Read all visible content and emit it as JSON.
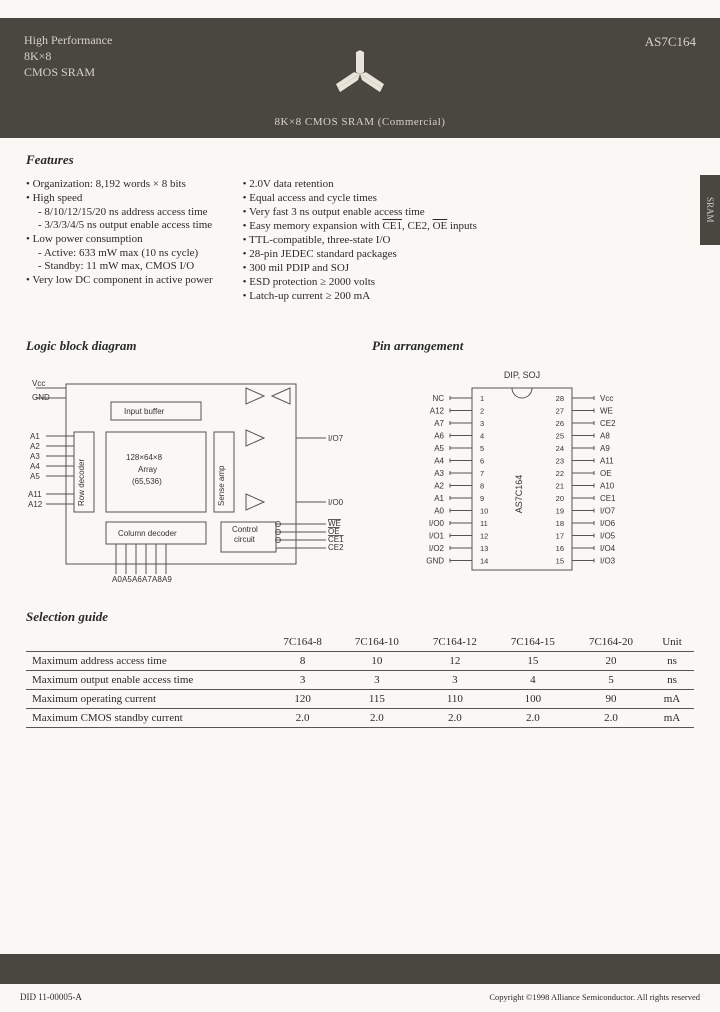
{
  "header": {
    "line1": "High Performance",
    "line2": "8K×8",
    "line3": "CMOS SRAM",
    "right": "AS7C164",
    "sub": "8K×8 CMOS SRAM (Commercial)"
  },
  "sideTab": "SRAM",
  "sections": {
    "features": "Features",
    "logic": "Logic block diagram",
    "pin": "Pin arrangement",
    "selection": "Selection guide"
  },
  "featuresLeft": [
    {
      "t": "b",
      "text": "Organization: 8,192 words × 8 bits"
    },
    {
      "t": "b",
      "text": "High speed"
    },
    {
      "t": "s",
      "text": "8/10/12/15/20 ns address access time"
    },
    {
      "t": "s",
      "text": "3/3/3/4/5 ns output enable access time"
    },
    {
      "t": "b",
      "text": "Low power consumption"
    },
    {
      "t": "s",
      "text": "Active: 633 mW max (10 ns cycle)"
    },
    {
      "t": "s",
      "text": "Standby: 11 mW max, CMOS I/O"
    },
    {
      "t": "b",
      "text": "Very low DC component in active power"
    }
  ],
  "featuresRight": [
    {
      "t": "b",
      "text": "2.0V data retention"
    },
    {
      "t": "b",
      "text": "Equal access and cycle times"
    },
    {
      "t": "b",
      "text": "Very fast 3 ns output enable access time"
    },
    {
      "t": "b",
      "text": "Easy memory expansion with CE1, CE2, OE inputs"
    },
    {
      "t": "b",
      "text": "TTL-compatible, three-state I/O"
    },
    {
      "t": "b",
      "text": "28-pin JEDEC standard packages"
    },
    {
      "t": "b",
      "text": "300 mil PDIP and SOJ"
    },
    {
      "t": "b",
      "text": "ESD protection ≥ 2000 volts"
    },
    {
      "t": "b",
      "text": "Latch-up current ≥ 200 mA"
    }
  ],
  "logic": {
    "vcc": "Vcc",
    "gnd": "GND",
    "inputBuffer": "Input buffer",
    "array1": "128×64×8",
    "array2": "Array",
    "array3": "(65,536)",
    "rowDecoder": "Row decoder",
    "colDecoder": "Column decoder",
    "senseAmp": "Sense amp",
    "control": "Control",
    "circuit": "circuit",
    "io7": "I/O7",
    "io0": "I/O0",
    "we": "WE",
    "oe": "OE",
    "ce1": "CE1",
    "ce2": "CE2",
    "addr": [
      "A1",
      "A2",
      "A3",
      "A4",
      "A5",
      "A11",
      "A12"
    ],
    "bottomAddr": [
      "A0",
      "A5",
      "A6",
      "A7",
      "A8",
      "A9"
    ]
  },
  "pin": {
    "package": "DIP, SOJ",
    "chip": "AS7C164",
    "left": [
      "NC",
      "A12",
      "A7",
      "A6",
      "A5",
      "A4",
      "A3",
      "A2",
      "A1",
      "A0",
      "I/O0",
      "I/O1",
      "I/O2",
      "GND"
    ],
    "right": [
      "Vcc",
      "WE",
      "CE2",
      "A8",
      "A9",
      "A11",
      "OE",
      "A10",
      "CE1",
      "I/O7",
      "I/O6",
      "I/O5",
      "I/O4",
      "I/O3"
    ]
  },
  "selection": {
    "columns": [
      "",
      "7C164-8",
      "7C164-10",
      "7C164-12",
      "7C164-15",
      "7C164-20",
      "Unit"
    ],
    "rows": [
      [
        "Maximum address access time",
        "8",
        "10",
        "12",
        "15",
        "20",
        "ns"
      ],
      [
        "Maximum output enable access time",
        "3",
        "3",
        "3",
        "4",
        "5",
        "ns"
      ],
      [
        "Maximum operating current",
        "120",
        "115",
        "110",
        "100",
        "90",
        "mA"
      ],
      [
        "Maximum CMOS standby current",
        "2.0",
        "2.0",
        "2.0",
        "2.0",
        "2.0",
        "mA"
      ]
    ]
  },
  "footer": {
    "left": "DID 11-00005-A",
    "right": "Copyright ©1998 Alliance Semiconductor. All rights reserved"
  },
  "colors": {
    "band": "#4a4640",
    "page": "#faf8f5",
    "text": "#2a2a2a",
    "line": "#555"
  }
}
